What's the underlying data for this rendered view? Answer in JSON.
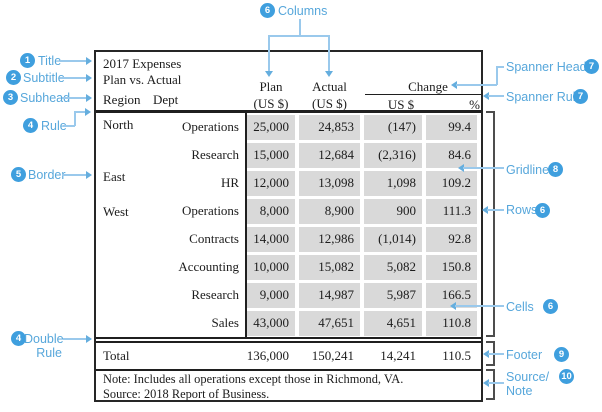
{
  "table": {
    "title": "2017 Expenses",
    "subtitle": "Plan vs. Actual",
    "stub_headers": {
      "region": "Region",
      "dept": "Dept"
    },
    "col_headers": {
      "plan_1": "Plan",
      "plan_2": "(US $)",
      "actual_1": "Actual",
      "actual_2": "(US $)",
      "spanner": "Change",
      "change_usd": "US $",
      "change_pct": "%"
    },
    "regions": [
      {
        "label": "North"
      },
      {
        "label": "East"
      },
      {
        "label": "West"
      }
    ],
    "rows": [
      {
        "dept": "Operations",
        "plan": "25,000",
        "actual": "24,853",
        "usd": "(147)",
        "pct": "99.4"
      },
      {
        "dept": "Research",
        "plan": "15,000",
        "actual": "12,684",
        "usd": "(2,316)",
        "pct": "84.6"
      },
      {
        "dept": "HR",
        "plan": "12,000",
        "actual": "13,098",
        "usd": "1,098",
        "pct": "109.2"
      },
      {
        "dept": "Operations",
        "plan": "8,000",
        "actual": "8,900",
        "usd": "900",
        "pct": "111.3"
      },
      {
        "dept": "Contracts",
        "plan": "14,000",
        "actual": "12,986",
        "usd": "(1,014)",
        "pct": "92.8"
      },
      {
        "dept": "Accounting",
        "plan": "10,000",
        "actual": "15,082",
        "usd": "5,082",
        "pct": "150.8"
      },
      {
        "dept": "Research",
        "plan": "9,000",
        "actual": "14,987",
        "usd": "5,987",
        "pct": "166.5"
      },
      {
        "dept": "Sales",
        "plan": "43,000",
        "actual": "47,651",
        "usd": "4,651",
        "pct": "110.8"
      }
    ],
    "footer": {
      "label": "Total",
      "plan": "136,000",
      "actual": "150,241",
      "usd": "14,241",
      "pct": "110.5"
    },
    "note_lines": [
      "Note: Includes all operations except those in Richmond, VA.",
      "Source: 2018 Report of Business."
    ]
  },
  "annotations": {
    "title": {
      "num": "1",
      "label": "Title"
    },
    "subtitle": {
      "num": "2",
      "label": "Subtitle"
    },
    "subhead": {
      "num": "3",
      "label": "Subhead"
    },
    "rule": {
      "num": "4",
      "label": "Rule"
    },
    "border": {
      "num": "5",
      "label": "Border"
    },
    "columns": {
      "num": "6",
      "label": "Columns"
    },
    "spanner_header": {
      "num": "7",
      "label": "Spanner Header"
    },
    "spanner_rule": {
      "num": "7",
      "label": "Spanner Rule"
    },
    "gridlines": {
      "num": "8",
      "label": "Gridlines"
    },
    "rows": {
      "num": "6",
      "label": "Rows"
    },
    "cells": {
      "num": "6",
      "label": "Cells"
    },
    "double_rule": {
      "num": "4",
      "label_line1": "Double",
      "label_line2": "Rule"
    },
    "footer": {
      "num": "9",
      "label": "Footer"
    },
    "source_note": {
      "num": "10",
      "label_line1": "Source/",
      "label_line2": "Note"
    }
  },
  "colors": {
    "annotation_blue": "#57a7db",
    "badge_blue": "#3f9fde",
    "connector_blue": "#9ac9ec",
    "cell_gray": "#d9d9d9",
    "bracket_gray": "#4d4d4d",
    "rule_black": "#1f1f1f"
  }
}
